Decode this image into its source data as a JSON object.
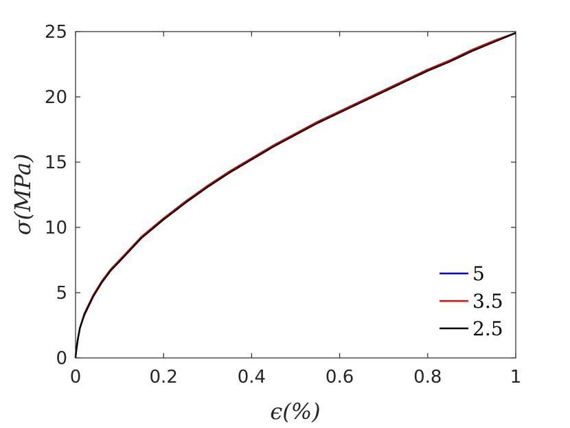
{
  "chart_data": {
    "type": "line",
    "xlabel": "ϵ(%)",
    "ylabel": "σ(MPa)",
    "xlim": [
      0,
      1
    ],
    "ylim": [
      0,
      25
    ],
    "xticks": [
      0,
      0.2,
      0.4,
      0.6,
      0.8,
      1
    ],
    "xtick_labels": [
      "0",
      "0.2",
      "0.4",
      "0.6",
      "0.8",
      "1"
    ],
    "yticks": [
      0,
      5,
      10,
      15,
      20,
      25
    ],
    "ytick_labels": [
      "0",
      "5",
      "10",
      "15",
      "20",
      "25"
    ],
    "grid": false,
    "legend_position": "lower-right",
    "series": [
      {
        "name": "5",
        "color": "#0000ff",
        "x": [
          0.001,
          0.005,
          0.01,
          0.02,
          0.04,
          0.06,
          0.08,
          0.1,
          0.15,
          0.2,
          0.25,
          0.3,
          0.35,
          0.4,
          0.45,
          0.5,
          0.55,
          0.6,
          0.65,
          0.7,
          0.75,
          0.8,
          0.85,
          0.9,
          0.95,
          1.0
        ],
        "y": [
          0.4,
          1.4,
          2.3,
          3.3,
          4.7,
          5.8,
          6.7,
          7.4,
          9.2,
          10.6,
          11.9,
          13.1,
          14.2,
          15.2,
          16.2,
          17.1,
          18.0,
          18.8,
          19.6,
          20.4,
          21.2,
          22.0,
          22.7,
          23.5,
          24.2,
          24.9
        ]
      },
      {
        "name": "3.5",
        "color": "#e01010",
        "x": [
          0.001,
          0.005,
          0.01,
          0.02,
          0.04,
          0.06,
          0.08,
          0.1,
          0.15,
          0.2,
          0.25,
          0.3,
          0.35,
          0.4,
          0.45,
          0.5,
          0.55,
          0.6,
          0.65,
          0.7,
          0.75,
          0.8,
          0.85,
          0.9,
          0.95,
          1.0
        ],
        "y": [
          0.4,
          1.4,
          2.3,
          3.4,
          4.8,
          5.9,
          6.8,
          7.5,
          9.3,
          10.7,
          12.0,
          13.2,
          14.3,
          15.3,
          16.3,
          17.2,
          18.1,
          18.9,
          19.7,
          20.5,
          21.3,
          22.1,
          22.8,
          23.6,
          24.3,
          24.9
        ]
      },
      {
        "name": "2.5",
        "color": "#000000",
        "x": [
          0.001,
          0.005,
          0.01,
          0.02,
          0.04,
          0.06,
          0.08,
          0.1,
          0.15,
          0.2,
          0.25,
          0.3,
          0.35,
          0.4,
          0.45,
          0.5,
          0.55,
          0.6,
          0.65,
          0.7,
          0.75,
          0.8,
          0.85,
          0.9,
          0.95,
          1.0
        ],
        "y": [
          0.4,
          1.4,
          2.3,
          3.3,
          4.7,
          5.8,
          6.7,
          7.4,
          9.2,
          10.6,
          11.9,
          13.1,
          14.2,
          15.2,
          16.2,
          17.1,
          18.0,
          18.8,
          19.6,
          20.4,
          21.2,
          22.0,
          22.7,
          23.5,
          24.2,
          24.9
        ]
      }
    ]
  }
}
